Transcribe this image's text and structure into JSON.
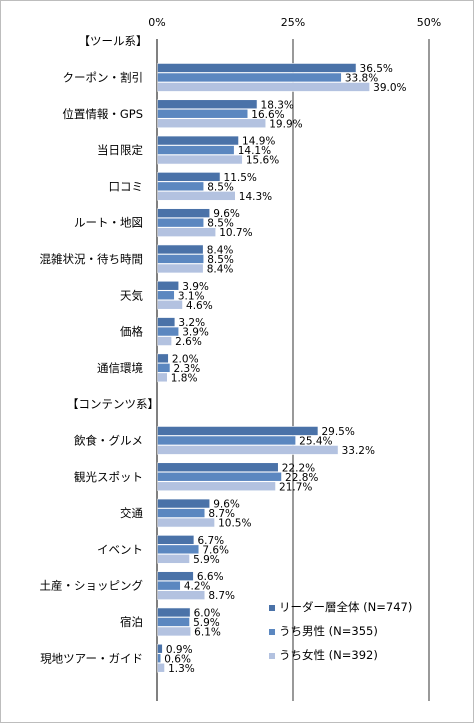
{
  "chart_data": {
    "type": "bar",
    "orientation": "horizontal",
    "title": "",
    "xlabel": "",
    "ylabel": "",
    "xlim": [
      0,
      50
    ],
    "x_ticks": [
      "0%",
      "25%",
      "50%"
    ],
    "x_tick_values": [
      0,
      25,
      50
    ],
    "value_suffix": "%",
    "grid": true,
    "legend_position": "bottom-right",
    "series": [
      {
        "name": "リーダー層全体 (N=747)",
        "color": "#4a72a8"
      },
      {
        "name": "うち男性 (N=355)",
        "color": "#5b87c0"
      },
      {
        "name": "うち女性 (N=392)",
        "color": "#b3c2e0"
      }
    ],
    "groups": [
      {
        "header": "【ツール系】",
        "categories": [
          {
            "label": "クーポン・割引",
            "values": [
              36.5,
              33.8,
              39.0
            ]
          },
          {
            "label": "位置情報・GPS",
            "values": [
              18.3,
              16.6,
              19.9
            ]
          },
          {
            "label": "当日限定",
            "values": [
              14.9,
              14.1,
              15.6
            ]
          },
          {
            "label": "口コミ",
            "values": [
              11.5,
              8.5,
              14.3
            ]
          },
          {
            "label": "ルート・地図",
            "values": [
              9.6,
              8.5,
              10.7
            ]
          },
          {
            "label": "混雑状況・待ち時間",
            "values": [
              8.4,
              8.5,
              8.4
            ]
          },
          {
            "label": "天気",
            "values": [
              3.9,
              3.1,
              4.6
            ]
          },
          {
            "label": "価格",
            "values": [
              3.2,
              3.9,
              2.6
            ]
          },
          {
            "label": "通信環境",
            "values": [
              2.0,
              2.3,
              1.8
            ]
          }
        ]
      },
      {
        "header": "【コンテンツ系】",
        "categories": [
          {
            "label": "飲食・グルメ",
            "values": [
              29.5,
              25.4,
              33.2
            ]
          },
          {
            "label": "観光スポット",
            "values": [
              22.2,
              22.8,
              21.7
            ]
          },
          {
            "label": "交通",
            "values": [
              9.6,
              8.7,
              10.5
            ]
          },
          {
            "label": "イベント",
            "values": [
              6.7,
              7.6,
              5.9
            ]
          },
          {
            "label": "土産・ショッピング",
            "values": [
              6.6,
              4.2,
              8.7
            ]
          },
          {
            "label": "宿泊",
            "values": [
              6.0,
              5.9,
              6.1
            ]
          },
          {
            "label": "現地ツアー・ガイド",
            "values": [
              0.9,
              0.6,
              1.3
            ]
          }
        ]
      }
    ]
  }
}
